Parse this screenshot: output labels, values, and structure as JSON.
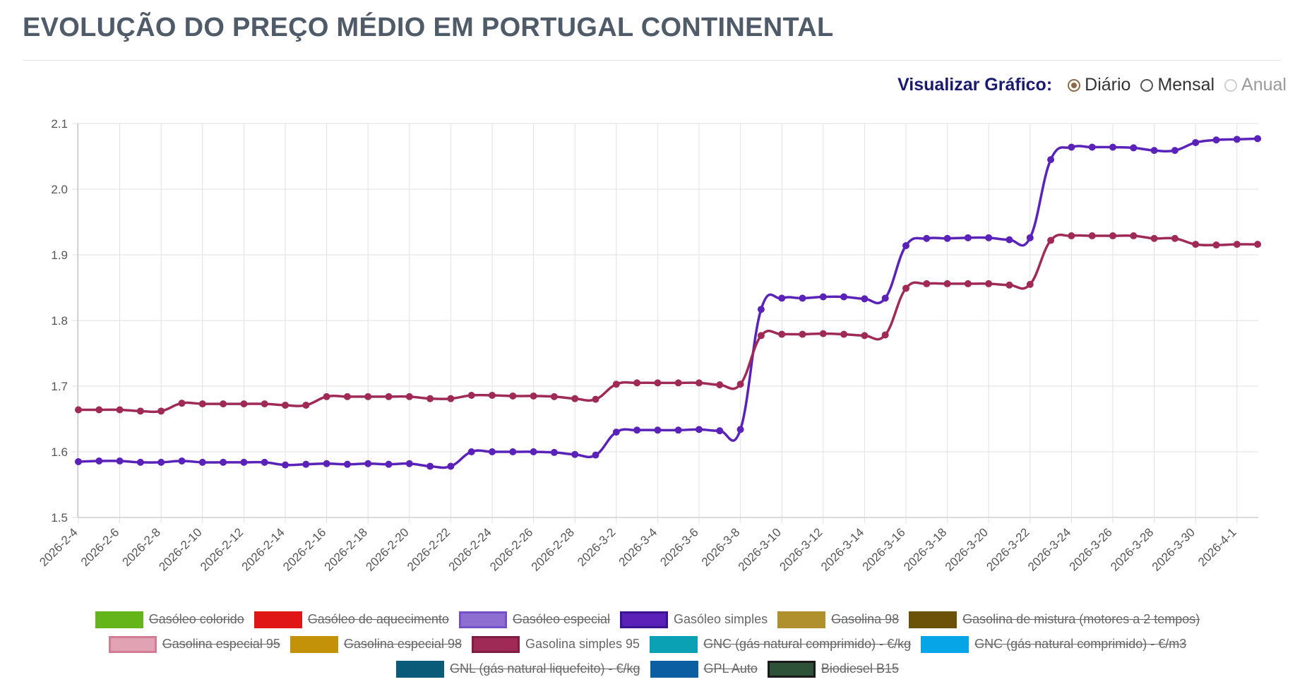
{
  "page": {
    "title": "EVOLUÇÃO DO PREÇO MÉDIO EM PORTUGAL CONTINENTAL"
  },
  "view_controls": {
    "label": "Visualizar Gráfico:",
    "options": [
      {
        "label": "Diário",
        "state": "checked"
      },
      {
        "label": "Mensal",
        "state": "unchecked"
      },
      {
        "label": "Anual",
        "state": "disabled"
      }
    ]
  },
  "chart_data": {
    "type": "line",
    "title": "",
    "xlabel": "",
    "ylabel": "",
    "ylim": [
      1.5,
      2.1
    ],
    "yticks": [
      "1.5",
      "1.6",
      "1.7",
      "1.8",
      "1.9",
      "2.0",
      "2.1"
    ],
    "grid": true,
    "legend_position": "bottom",
    "x": [
      "2026-2-4",
      "2026-2-5",
      "2026-2-6",
      "2026-2-7",
      "2026-2-8",
      "2026-2-9",
      "2026-2-10",
      "2026-2-11",
      "2026-2-12",
      "2026-2-13",
      "2026-2-14",
      "2026-2-15",
      "2026-2-16",
      "2026-2-17",
      "2026-2-18",
      "2026-2-19",
      "2026-2-20",
      "2026-2-21",
      "2026-2-22",
      "2026-2-23",
      "2026-2-24",
      "2026-2-25",
      "2026-2-26",
      "2026-2-27",
      "2026-2-28",
      "2026-3-1",
      "2026-3-2",
      "2026-3-3",
      "2026-3-4",
      "2026-3-5",
      "2026-3-6",
      "2026-3-7",
      "2026-3-8",
      "2026-3-9",
      "2026-3-10",
      "2026-3-11",
      "2026-3-12",
      "2026-3-13",
      "2026-3-14",
      "2026-3-15",
      "2026-3-16",
      "2026-3-17",
      "2026-3-18",
      "2026-3-19",
      "2026-3-20",
      "2026-3-21",
      "2026-3-22",
      "2026-3-23",
      "2026-3-24",
      "2026-3-25",
      "2026-3-26",
      "2026-3-27",
      "2026-3-28",
      "2026-3-29",
      "2026-3-30",
      "2026-3-31",
      "2026-4-1",
      "2026-4-2"
    ],
    "x_tick_labels": [
      "2026-2-4",
      "2026-2-6",
      "2026-2-8",
      "2026-2-10",
      "2026-2-12",
      "2026-2-14",
      "2026-2-16",
      "2026-2-18",
      "2026-2-20",
      "2026-2-22",
      "2026-2-24",
      "2026-2-26",
      "2026-2-28",
      "2026-3-2",
      "2026-3-4",
      "2026-3-6",
      "2026-3-8",
      "2026-3-10",
      "2026-3-12",
      "2026-3-14",
      "2026-3-16",
      "2026-3-18",
      "2026-3-20",
      "2026-3-22",
      "2026-3-24",
      "2026-3-26",
      "2026-3-28",
      "2026-3-30",
      "2026-4-1"
    ],
    "series": [
      {
        "name": "Gasóleo simples",
        "color": "#5a22b8",
        "values": [
          1.585,
          1.586,
          1.586,
          1.584,
          1.584,
          1.586,
          1.584,
          1.584,
          1.584,
          1.584,
          1.58,
          1.581,
          1.582,
          1.581,
          1.582,
          1.581,
          1.582,
          1.578,
          1.578,
          1.6,
          1.6,
          1.6,
          1.6,
          1.599,
          1.596,
          1.595,
          1.63,
          1.633,
          1.633,
          1.633,
          1.634,
          1.632,
          1.634,
          1.817,
          1.834,
          1.834,
          1.836,
          1.836,
          1.833,
          1.834,
          1.914,
          1.925,
          1.925,
          1.926,
          1.926,
          1.923,
          1.926,
          2.045,
          2.064,
          2.064,
          2.064,
          2.063,
          2.059,
          2.059,
          2.071,
          2.075,
          2.076,
          2.077
        ]
      },
      {
        "name": "Gasolina simples 95",
        "color": "#9e2a55",
        "values": [
          1.664,
          1.664,
          1.664,
          1.662,
          1.662,
          1.674,
          1.673,
          1.673,
          1.673,
          1.673,
          1.671,
          1.671,
          1.684,
          1.684,
          1.684,
          1.684,
          1.684,
          1.681,
          1.681,
          1.686,
          1.686,
          1.685,
          1.685,
          1.684,
          1.681,
          1.68,
          1.703,
          1.705,
          1.705,
          1.705,
          1.705,
          1.702,
          1.703,
          1.777,
          1.779,
          1.779,
          1.78,
          1.779,
          1.777,
          1.778,
          1.849,
          1.856,
          1.856,
          1.856,
          1.856,
          1.854,
          1.855,
          1.922,
          1.929,
          1.929,
          1.929,
          1.929,
          1.925,
          1.925,
          1.916,
          1.915,
          1.916,
          1.916
        ]
      }
    ]
  },
  "legend": {
    "rows": [
      [
        {
          "label": "Gasóleo colorido",
          "fill": "#63b51a",
          "border": "#63b51a",
          "hidden": true
        },
        {
          "label": "Gasóleo de aquecimento",
          "fill": "#e01515",
          "border": "#e01515",
          "hidden": true
        },
        {
          "label": "Gasóleo especial",
          "fill": "#8e6fd1",
          "border": "#7452c6",
          "hidden": true
        },
        {
          "label": "Gasóleo simples",
          "fill": "#5a22b8",
          "border": "#3b1590",
          "hidden": false
        },
        {
          "label": "Gasolina 98",
          "fill": "#b0902c",
          "border": "#b0902c",
          "hidden": true
        },
        {
          "label": "Gasolina de mistura (motores a 2 tempos)",
          "fill": "#6b5208",
          "border": "#6b5208",
          "hidden": true
        }
      ],
      [
        {
          "label": "Gasolina especial 95",
          "fill": "#e1a2b4",
          "border": "#d27d96",
          "hidden": true
        },
        {
          "label": "Gasolina especial 98",
          "fill": "#c39208",
          "border": "#c39208",
          "hidden": true
        },
        {
          "label": "Gasolina simples 95",
          "fill": "#9e2a55",
          "border": "#7e1f42",
          "hidden": false
        },
        {
          "label": "GNC (gás natural comprimido) - €/kg",
          "fill": "#0aa1b5",
          "border": "#0aa1b5",
          "hidden": true
        },
        {
          "label": "GNC (gás natural comprimido) - €/m3",
          "fill": "#05a5e8",
          "border": "#05a5e8",
          "hidden": true
        }
      ],
      [
        {
          "label": "GNL (gás natural liquefeito) - €/kg",
          "fill": "#0a5a7a",
          "border": "#0a5a7a",
          "hidden": true
        },
        {
          "label": "GPL Auto",
          "fill": "#0c5ea3",
          "border": "#0c5ea3",
          "hidden": true
        },
        {
          "label": "Biodiesel B15",
          "fill": "#2d5238",
          "border": "#1a1a1a",
          "hidden": true
        }
      ]
    ]
  }
}
